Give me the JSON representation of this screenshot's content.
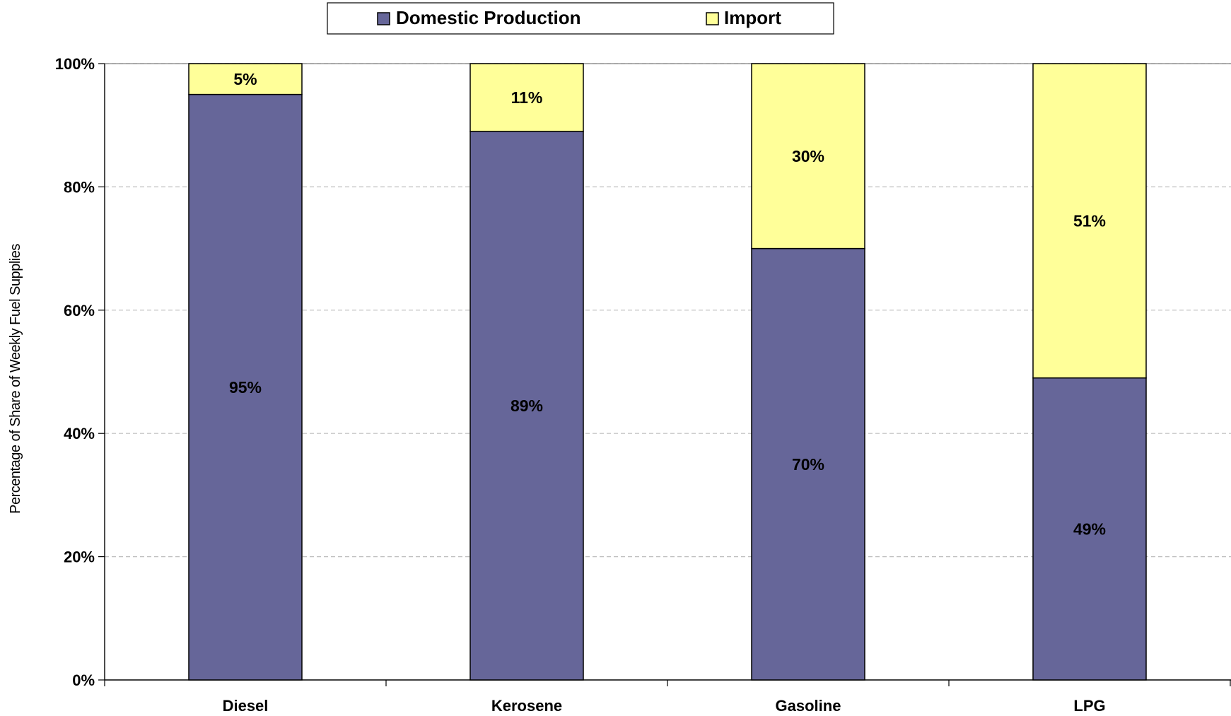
{
  "chart_data": {
    "type": "bar",
    "stacked": true,
    "categories": [
      "Diesel",
      "Kerosene",
      "Gasoline",
      "LPG"
    ],
    "series": [
      {
        "name": "Domestic Production",
        "color": "#666699",
        "values": [
          95,
          89,
          70,
          49
        ],
        "labels": [
          "95%",
          "89%",
          "70%",
          "49%"
        ]
      },
      {
        "name": "Import",
        "color": "#ffff99",
        "values": [
          5,
          11,
          30,
          51
        ],
        "labels": [
          "5%",
          "11%",
          "30%",
          "51%"
        ]
      }
    ],
    "ylabel": "Percentage of Share of Weekly Fuel Supplies",
    "ylim": [
      0,
      100
    ],
    "yticks": [
      {
        "value": 0,
        "label": "0%"
      },
      {
        "value": 20,
        "label": "20%"
      },
      {
        "value": 40,
        "label": "40%"
      },
      {
        "value": 60,
        "label": "60%"
      },
      {
        "value": 80,
        "label": "80%"
      },
      {
        "value": 100,
        "label": "100%"
      }
    ],
    "grid": true,
    "legend_position": "top"
  }
}
